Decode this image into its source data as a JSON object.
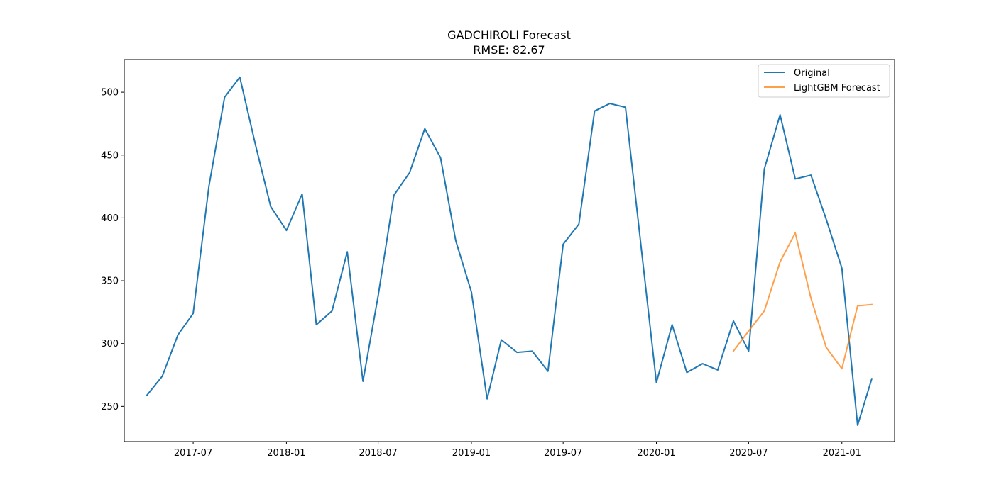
{
  "chart_data": {
    "type": "line",
    "title": "GADCHIROLI Forecast",
    "subtitle": "RMSE: 82.67",
    "xlabel": "",
    "ylabel": "",
    "x_axis_type": "date",
    "xlim": [
      "2017-02-15",
      "2021-04-15"
    ],
    "ylim": [
      222,
      526
    ],
    "xticks": [
      "2017-07",
      "2018-01",
      "2018-07",
      "2019-01",
      "2019-07",
      "2020-01",
      "2020-07",
      "2021-01"
    ],
    "yticks": [
      250,
      300,
      350,
      400,
      450,
      500
    ],
    "grid": false,
    "legend_position": "top-right",
    "series": [
      {
        "name": "Original",
        "color": "#1f77b4",
        "points": [
          [
            "2017-04-01",
            259
          ],
          [
            "2017-05-01",
            274
          ],
          [
            "2017-06-01",
            307
          ],
          [
            "2017-07-01",
            324
          ],
          [
            "2017-08-01",
            425
          ],
          [
            "2017-09-01",
            496
          ],
          [
            "2017-10-01",
            512
          ],
          [
            "2017-11-01",
            458
          ],
          [
            "2017-12-01",
            409
          ],
          [
            "2018-01-01",
            390
          ],
          [
            "2018-02-01",
            419
          ],
          [
            "2018-03-01",
            315
          ],
          [
            "2018-04-01",
            326
          ],
          [
            "2018-05-01",
            373
          ],
          [
            "2018-06-01",
            270
          ],
          [
            "2018-07-01",
            338
          ],
          [
            "2018-08-01",
            418
          ],
          [
            "2018-09-01",
            436
          ],
          [
            "2018-10-01",
            471
          ],
          [
            "2018-11-01",
            448
          ],
          [
            "2018-12-01",
            382
          ],
          [
            "2019-01-01",
            341
          ],
          [
            "2019-02-01",
            256
          ],
          [
            "2019-03-01",
            303
          ],
          [
            "2019-04-01",
            293
          ],
          [
            "2019-05-01",
            294
          ],
          [
            "2019-06-01",
            278
          ],
          [
            "2019-07-01",
            379
          ],
          [
            "2019-08-01",
            395
          ],
          [
            "2019-09-01",
            485
          ],
          [
            "2019-10-01",
            491
          ],
          [
            "2019-11-01",
            488
          ],
          [
            "2019-12-01",
            380
          ],
          [
            "2020-01-01",
            269
          ],
          [
            "2020-02-01",
            315
          ],
          [
            "2020-03-01",
            277
          ],
          [
            "2020-04-01",
            284
          ],
          [
            "2020-05-01",
            279
          ],
          [
            "2020-06-01",
            318
          ],
          [
            "2020-07-01",
            294
          ],
          [
            "2020-08-01",
            439
          ],
          [
            "2020-09-01",
            482
          ],
          [
            "2020-10-01",
            431
          ],
          [
            "2020-11-01",
            434
          ],
          [
            "2020-12-01",
            399
          ],
          [
            "2021-01-01",
            360
          ],
          [
            "2021-02-01",
            235
          ],
          [
            "2021-03-01",
            272
          ]
        ]
      },
      {
        "name": "LightGBM Forecast",
        "color": "#ff7f0e",
        "points": [
          [
            "2020-06-01",
            294
          ],
          [
            "2020-07-01",
            310
          ],
          [
            "2020-08-01",
            326
          ],
          [
            "2020-09-01",
            365
          ],
          [
            "2020-10-01",
            388
          ],
          [
            "2020-11-01",
            336
          ],
          [
            "2020-12-01",
            297
          ],
          [
            "2021-01-01",
            280
          ],
          [
            "2021-02-01",
            330
          ],
          [
            "2021-03-01",
            331
          ]
        ]
      }
    ]
  }
}
